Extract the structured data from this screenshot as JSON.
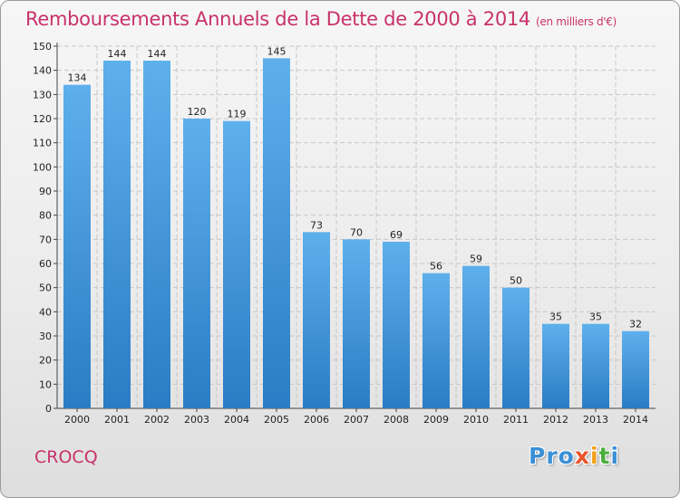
{
  "chart_data": {
    "type": "bar",
    "title": "Remboursements Annuels de la Dette de 2000 à 2014",
    "unit": "(en milliers d'€)",
    "categories": [
      "2000",
      "2001",
      "2002",
      "2003",
      "2004",
      "2005",
      "2006",
      "2007",
      "2008",
      "2009",
      "2010",
      "2011",
      "2012",
      "2013",
      "2014"
    ],
    "values": [
      134,
      144,
      144,
      120,
      119,
      145,
      73,
      70,
      69,
      56,
      59,
      50,
      35,
      35,
      32
    ],
    "ylim": [
      0,
      150
    ],
    "yticks": [
      0,
      10,
      20,
      30,
      40,
      50,
      60,
      70,
      80,
      90,
      100,
      110,
      120,
      130,
      140,
      150
    ],
    "grid": true,
    "xlabel": "",
    "ylabel": ""
  },
  "footer": {
    "town": "CROCQ",
    "logo": [
      "Pro",
      "x",
      "i",
      "t",
      "i"
    ]
  },
  "colors": {
    "bar_top": "#5eb0ec",
    "bar_bottom": "#2a7cc4",
    "title": "#c8326a",
    "grid": "#c8c8c8"
  }
}
